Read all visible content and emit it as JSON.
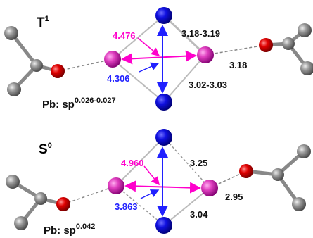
{
  "panels": [
    {
      "state": "T",
      "state_sup": "1",
      "magenta_distance": "4.476",
      "blue_distance": "4.306",
      "upper_bond": "3.18-3.19",
      "right_bond": "3.18",
      "lower_bond": "3.02-3.03",
      "hybrid": "Pb: sp",
      "hybrid_sup": "0.026-0.027"
    },
    {
      "state": "S",
      "state_sup": "0",
      "magenta_distance": "4.960",
      "blue_distance": "3.863",
      "upper_bond": "3.25",
      "right_bond": "2.95",
      "lower_bond": "3.04",
      "hybrid": "Pb: sp",
      "hybrid_sup": "0.042"
    }
  ]
}
